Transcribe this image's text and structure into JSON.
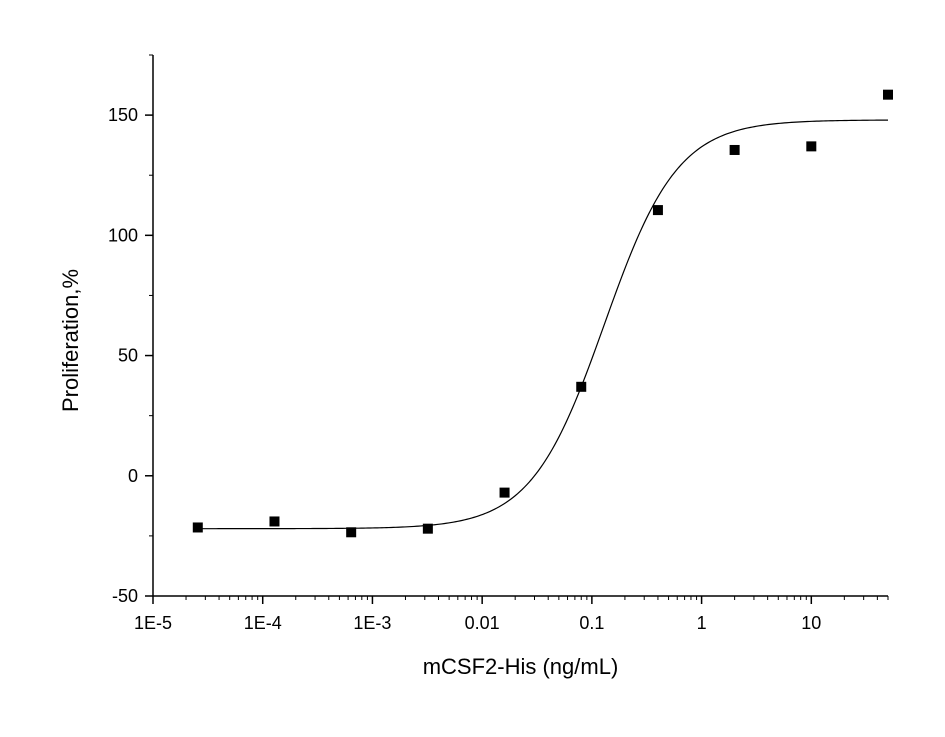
{
  "chart_data": {
    "type": "scatter",
    "xlabel": "mCSF2-His (ng/mL)",
    "ylabel": "Proliferation,%",
    "x_scale": "log",
    "xlim": [
      1e-05,
      50
    ],
    "ylim": [
      -50,
      175
    ],
    "x_ticks": [
      {
        "value": 1e-05,
        "label": "1E-5"
      },
      {
        "value": 0.0001,
        "label": "1E-4"
      },
      {
        "value": 0.001,
        "label": "1E-3"
      },
      {
        "value": 0.01,
        "label": "0.01"
      },
      {
        "value": 0.1,
        "label": "0.1"
      },
      {
        "value": 1,
        "label": "1"
      },
      {
        "value": 10,
        "label": "10"
      }
    ],
    "y_ticks": [
      {
        "value": -50,
        "label": "-50"
      },
      {
        "value": 0,
        "label": "0"
      },
      {
        "value": 50,
        "label": "50"
      },
      {
        "value": 100,
        "label": "100"
      },
      {
        "value": 150,
        "label": "150"
      }
    ],
    "grid": false,
    "legend": "none",
    "marker_color": "#000000",
    "series": [
      {
        "points": [
          {
            "x": 2.56e-05,
            "y": -21.5
          },
          {
            "x": 0.000128,
            "y": -19
          },
          {
            "x": 0.00064,
            "y": -23.5
          },
          {
            "x": 0.0032,
            "y": -22
          },
          {
            "x": 0.016,
            "y": -7
          },
          {
            "x": 0.08,
            "y": 37
          },
          {
            "x": 0.4,
            "y": 110.5
          },
          {
            "x": 2,
            "y": 135.5
          },
          {
            "x": 10,
            "y": 137
          },
          {
            "x": 50,
            "y": 158.5
          }
        ]
      }
    ],
    "fit_curve": {
      "type": "logistic",
      "bottom": -22,
      "top": 148,
      "ec50": 0.13,
      "hill": 1.3,
      "x_range": [
        2.56e-05,
        50
      ]
    }
  }
}
